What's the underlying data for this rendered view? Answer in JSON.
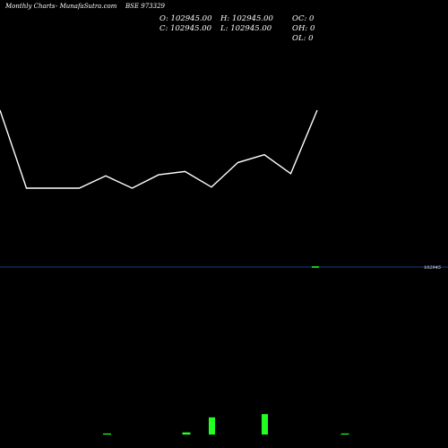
{
  "header": {
    "brand": "Monthly Charts",
    "site": "- MunafaSutra.com",
    "symbol": "BSE 973329"
  },
  "ohlc": {
    "open": "O: 102945.00",
    "high": "H: 102945.00",
    "oc": "OC: 0",
    "close": "C: 102945.00",
    "low": "L: 102945.00",
    "oh": "OH: 0",
    "ol": "OL: 0"
  },
  "price_label": "102945",
  "colors": {
    "background": "#000000",
    "line": "#ffffff",
    "price_line": "#1e3a8a",
    "volume": "#22ff22"
  },
  "chart_data": {
    "type": "line",
    "title": "",
    "xlabel": "",
    "ylabel": "",
    "line_series": {
      "values": [
        82,
        12,
        12,
        12,
        23,
        12,
        24,
        27,
        13,
        35,
        42,
        25,
        82
      ]
    },
    "price_level": 102945,
    "volume_series": {
      "type": "bar",
      "values": [
        1,
        0,
        0,
        2,
        16,
        0,
        19,
        0,
        0,
        1,
        0,
        0
      ]
    }
  }
}
